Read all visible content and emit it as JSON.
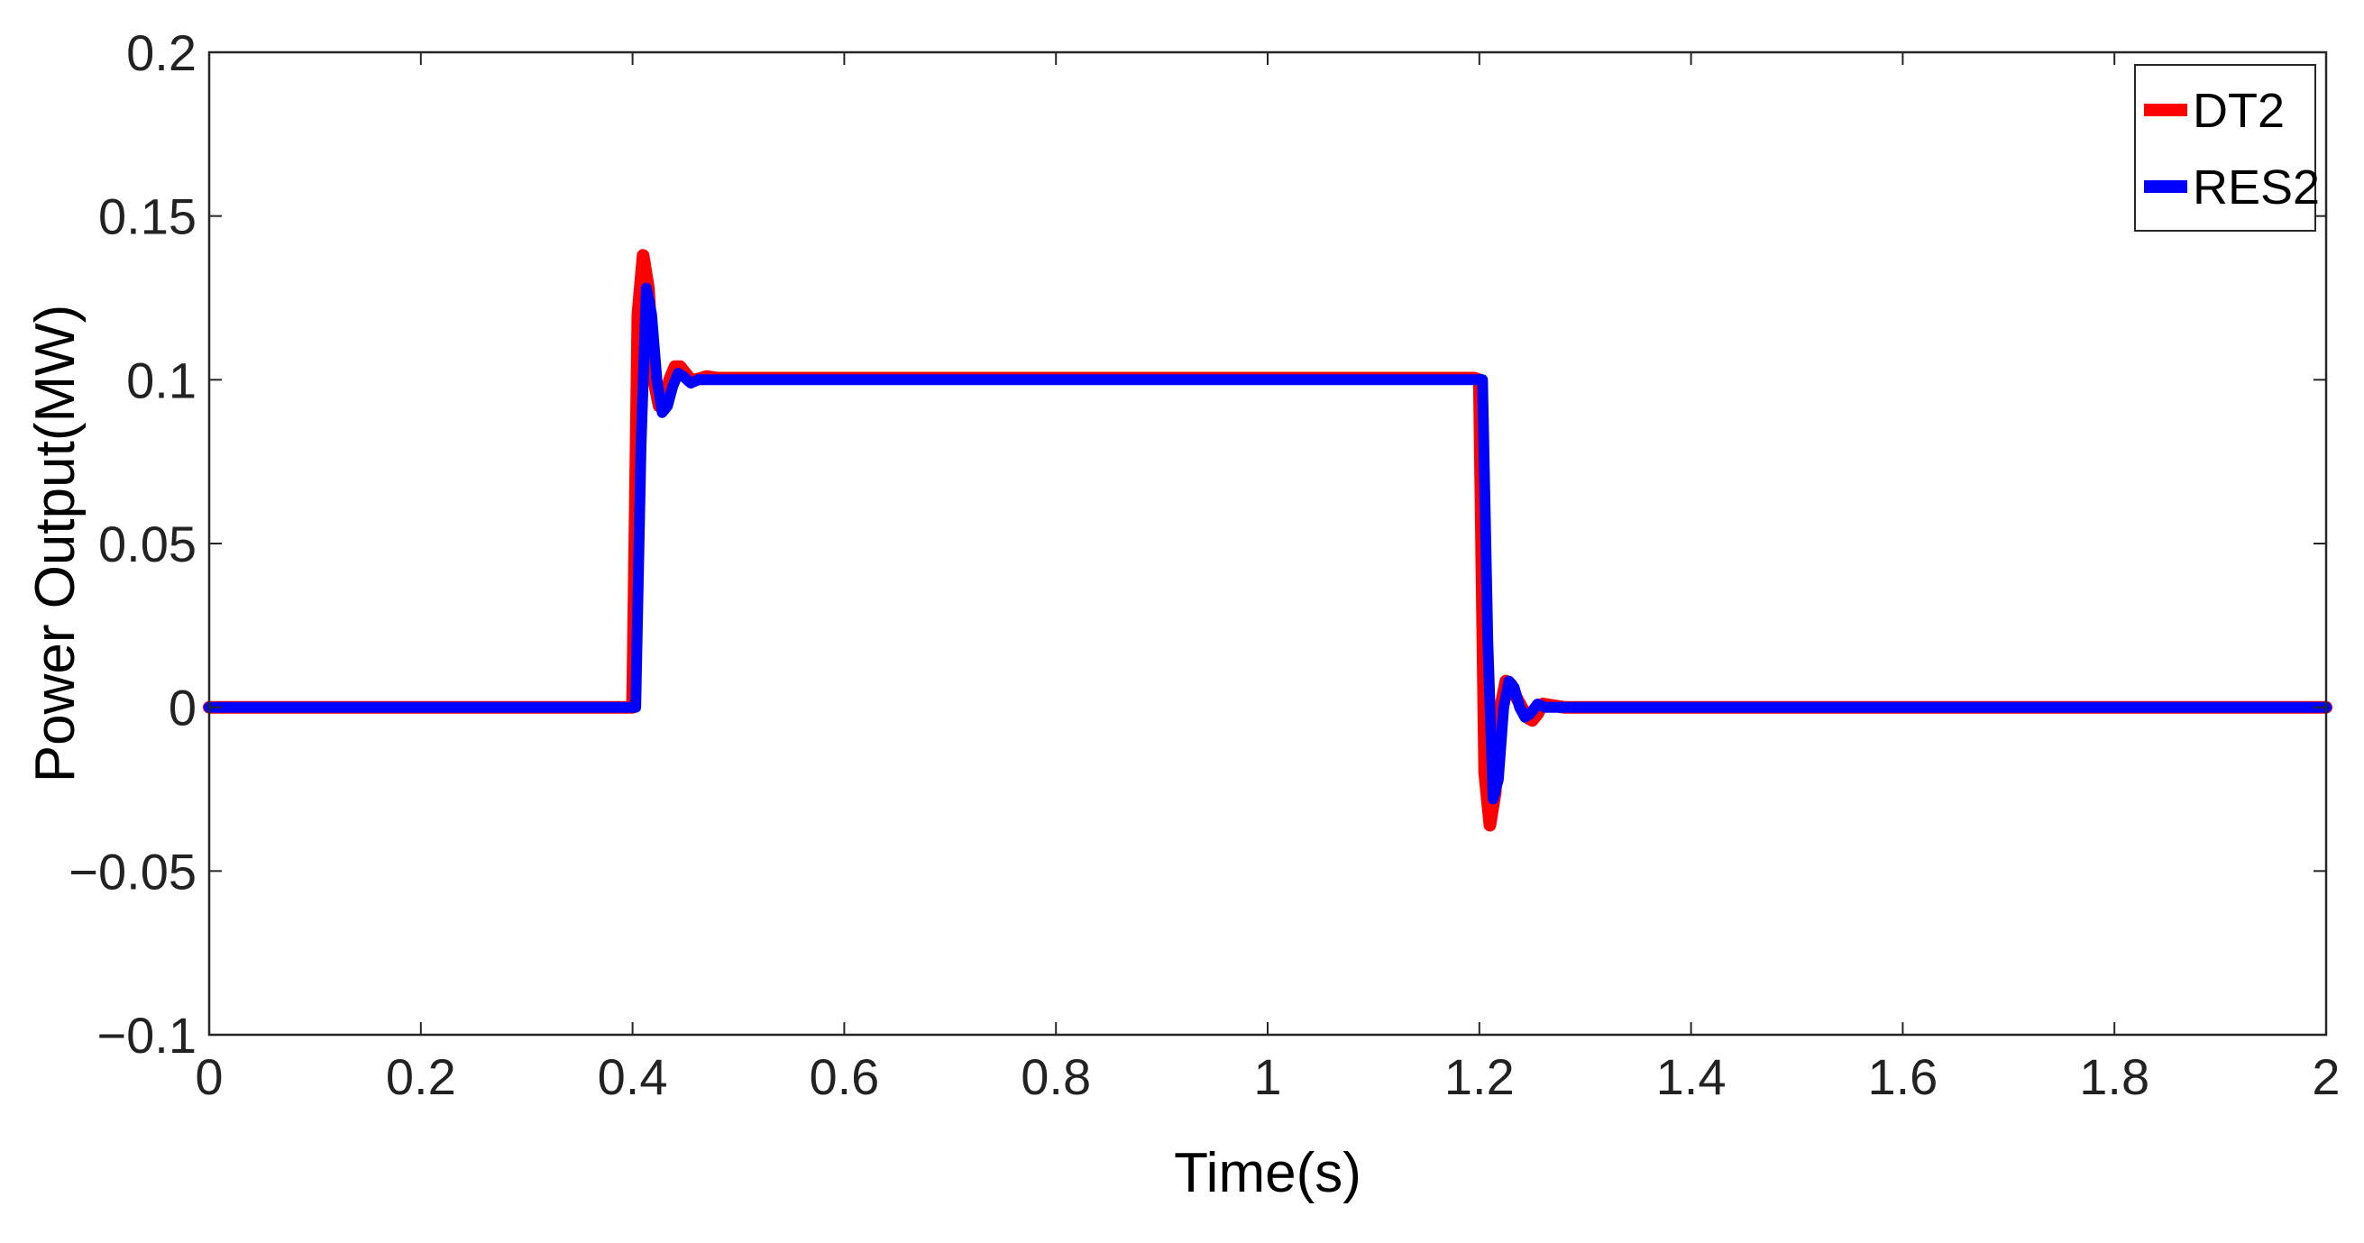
{
  "chart_data": {
    "type": "line",
    "title": "",
    "xlabel": "Time(s)",
    "ylabel": "Power Output(MW)",
    "xlim": [
      0,
      2
    ],
    "ylim": [
      -0.1,
      0.2
    ],
    "x_ticks": [
      0,
      0.2,
      0.4,
      0.6,
      0.8,
      1,
      1.2,
      1.4,
      1.6,
      1.8,
      2
    ],
    "x_tick_labels": [
      "0",
      "0.2",
      "0.4",
      "0.6",
      "0.8",
      "1",
      "1.2",
      "1.4",
      "1.6",
      "1.8",
      "2"
    ],
    "y_ticks": [
      -0.1,
      -0.05,
      0,
      0.05,
      0.1,
      0.15,
      0.2
    ],
    "y_tick_labels": [
      "−0.1",
      "−0.05",
      "0",
      "0.05",
      "0.1",
      "0.15",
      "0.2"
    ],
    "grid": false,
    "legend_position": "top-right",
    "series": [
      {
        "name": "DT2",
        "color": "#ff0000",
        "x": [
          0,
          0.395,
          0.4,
          0.405,
          0.41,
          0.415,
          0.42,
          0.425,
          0.43,
          0.435,
          0.44,
          0.445,
          0.45,
          0.455,
          0.46,
          0.47,
          0.48,
          0.5,
          0.6,
          0.8,
          1.0,
          1.195,
          1.2,
          1.205,
          1.21,
          1.215,
          1.22,
          1.225,
          1.23,
          1.235,
          1.24,
          1.245,
          1.25,
          1.255,
          1.26,
          1.27,
          1.28,
          1.3,
          1.4,
          1.6,
          1.8,
          2.0
        ],
        "y": [
          0,
          0,
          0.0,
          0.12,
          0.138,
          0.128,
          0.1,
          0.092,
          0.094,
          0.1,
          0.104,
          0.104,
          0.102,
          0.1,
          0.1,
          0.101,
          0.1005,
          0.1005,
          0.1005,
          0.1005,
          0.1005,
          0.1005,
          0.1,
          -0.02,
          -0.036,
          -0.026,
          0.0,
          0.008,
          0.007,
          0.003,
          0.0,
          -0.003,
          -0.004,
          -0.002,
          0.001,
          0.0005,
          0.0,
          0.0,
          0.0,
          0.0,
          0.0,
          0.0
        ]
      },
      {
        "name": "RES2",
        "color": "#0000ff",
        "x": [
          0,
          0.4,
          0.403,
          0.408,
          0.413,
          0.418,
          0.423,
          0.428,
          0.433,
          0.438,
          0.443,
          0.448,
          0.455,
          0.462,
          0.47,
          0.48,
          0.5,
          0.6,
          0.8,
          1.0,
          1.2,
          1.203,
          1.208,
          1.213,
          1.218,
          1.223,
          1.228,
          1.233,
          1.238,
          1.243,
          1.248,
          1.255,
          1.262,
          1.27,
          1.28,
          1.3,
          1.4,
          1.6,
          1.8,
          2.0
        ],
        "y": [
          0,
          0,
          0.0,
          0.08,
          0.128,
          0.12,
          0.1,
          0.09,
          0.092,
          0.098,
          0.102,
          0.101,
          0.099,
          0.1,
          0.1,
          0.1,
          0.1,
          0.1,
          0.1,
          0.1,
          0.1,
          0.1,
          0.02,
          -0.028,
          -0.022,
          0.0,
          0.008,
          0.006,
          0.0,
          -0.003,
          -0.002,
          0.001,
          0.0,
          0.0,
          0.0,
          0.0,
          0.0,
          0.0,
          0.0,
          0.0
        ]
      }
    ]
  }
}
